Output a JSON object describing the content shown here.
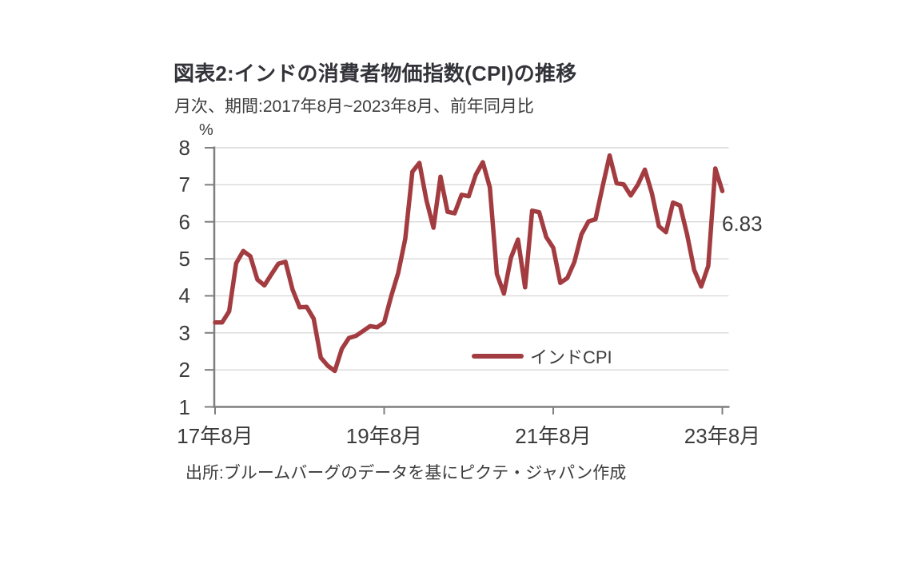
{
  "page": {
    "title": "図表2:インドの消費者物価指数(CPI)の推移",
    "subtitle": "月次、期間:2017年8月~2023年8月、前年同月比",
    "source": "出所:ブルームバーグのデータを基にピクテ・ジャパン作成"
  },
  "chart_data": {
    "type": "line",
    "title": "図表2:インドの消費者物価指数(CPI)の推移",
    "subtitle": "月次、期間:2017年8月~2023年8月、前年同月比",
    "unit_label": "%",
    "ylabel": "%",
    "ylim": [
      1,
      8
    ],
    "y_ticks": [
      8,
      7,
      6,
      5,
      4,
      3,
      2,
      1
    ],
    "x_tick_labels": [
      "17年8月",
      "19年8月",
      "21年8月",
      "23年8月"
    ],
    "start_month": "2017年8月",
    "end_month": "2023年8月",
    "frequency": "monthly",
    "grid": true,
    "legend_position": "inside-bottom-center",
    "last_value_label": "6.83",
    "colors": {
      "line": "#A33C40",
      "axis": "#7F7F7F",
      "gridline": "#D9D9D9",
      "text": "#3c3c3c",
      "title_text": "#33333a"
    },
    "series": [
      {
        "name": "インドCPI",
        "color": "#A33C40",
        "values": [
          3.28,
          3.28,
          3.58,
          4.88,
          5.21,
          5.07,
          4.44,
          4.28,
          4.58,
          4.87,
          4.92,
          4.17,
          3.69,
          3.7,
          3.38,
          2.33,
          2.11,
          1.97,
          2.57,
          2.86,
          2.92,
          3.05,
          3.18,
          3.15,
          3.28,
          3.99,
          4.62,
          5.54,
          7.35,
          7.59,
          6.58,
          5.84,
          7.22,
          6.27,
          6.23,
          6.73,
          6.69,
          7.27,
          7.61,
          6.93,
          4.59,
          4.06,
          5.03,
          5.52,
          4.23,
          6.3,
          6.26,
          5.59,
          5.3,
          4.35,
          4.48,
          4.91,
          5.66,
          6.01,
          6.07,
          6.95,
          7.79,
          7.04,
          7.01,
          6.71,
          7.0,
          7.41,
          6.77,
          5.88,
          5.72,
          6.52,
          6.44,
          5.66,
          4.7,
          4.25,
          4.81,
          7.44,
          6.83
        ]
      }
    ]
  }
}
